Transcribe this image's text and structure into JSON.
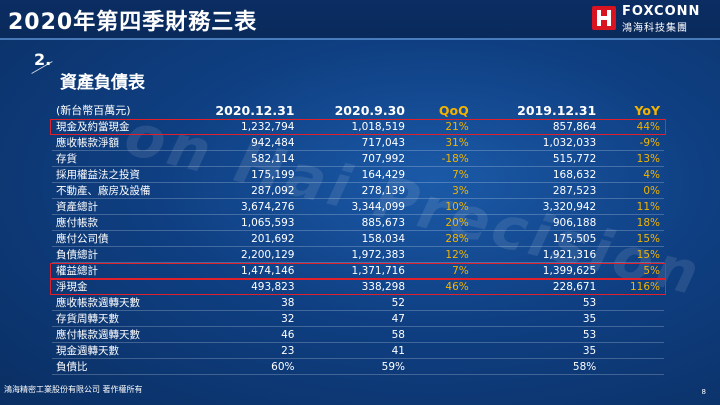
{
  "header": {
    "title": "2020年第四季財務三表",
    "logo_en": "FOXCONN",
    "logo_zh": "鴻海科技集團"
  },
  "section": {
    "number": "2.",
    "title": "資產負債表"
  },
  "watermark": "on Hai Precision",
  "table": {
    "unit": "(新台幣百萬元)",
    "columns": [
      "2020.12.31",
      "2020.9.30",
      "QoQ",
      "2019.12.31",
      "YoY"
    ],
    "rows": [
      [
        "現金及約當現金",
        "1,232,794",
        "1,018,519",
        "21%",
        "857,864",
        "44%"
      ],
      [
        "應收帳款淨額",
        "942,484",
        "717,043",
        "31%",
        "1,032,033",
        "-9%"
      ],
      [
        "存貨",
        "582,114",
        "707,992",
        "-18%",
        "515,772",
        "13%"
      ],
      [
        "採用權益法之投資",
        "175,199",
        "164,429",
        "7%",
        "168,632",
        "4%"
      ],
      [
        "不動產、廠房及設備",
        "287,092",
        "278,139",
        "3%",
        "287,523",
        "0%"
      ],
      [
        "資產總計",
        "3,674,276",
        "3,344,099",
        "10%",
        "3,320,942",
        "11%"
      ],
      [
        "應付帳款",
        "1,065,593",
        "885,673",
        "20%",
        "906,188",
        "18%"
      ],
      [
        "應付公司債",
        "201,692",
        "158,034",
        "28%",
        "175,505",
        "15%"
      ],
      [
        "負債總計",
        "2,200,129",
        "1,972,383",
        "12%",
        "1,921,316",
        "15%"
      ],
      [
        "權益總計",
        "1,474,146",
        "1,371,716",
        "7%",
        "1,399,625",
        "5%"
      ],
      [
        "淨現金",
        "493,823",
        "338,298",
        "46%",
        "228,671",
        "116%"
      ],
      [
        "應收帳款週轉天數",
        "38",
        "52",
        "",
        "53",
        ""
      ],
      [
        "存貨周轉天數",
        "32",
        "47",
        "",
        "35",
        ""
      ],
      [
        "應付帳款週轉天數",
        "46",
        "58",
        "",
        "53",
        ""
      ],
      [
        "現金週轉天數",
        "23",
        "41",
        "",
        "35",
        ""
      ],
      [
        "負債比",
        "60%",
        "59%",
        "",
        "58%",
        ""
      ]
    ],
    "highlighted_rows": [
      "現金及約當現金",
      "權益總計",
      "淨現金"
    ],
    "colors": {
      "accent": "#f2b400",
      "highlight_border": "#e0202a",
      "background": "#0f3f82"
    }
  },
  "footer": {
    "copyright": "鴻海精密工業股份有限公司 著作權所有",
    "page": "8"
  }
}
